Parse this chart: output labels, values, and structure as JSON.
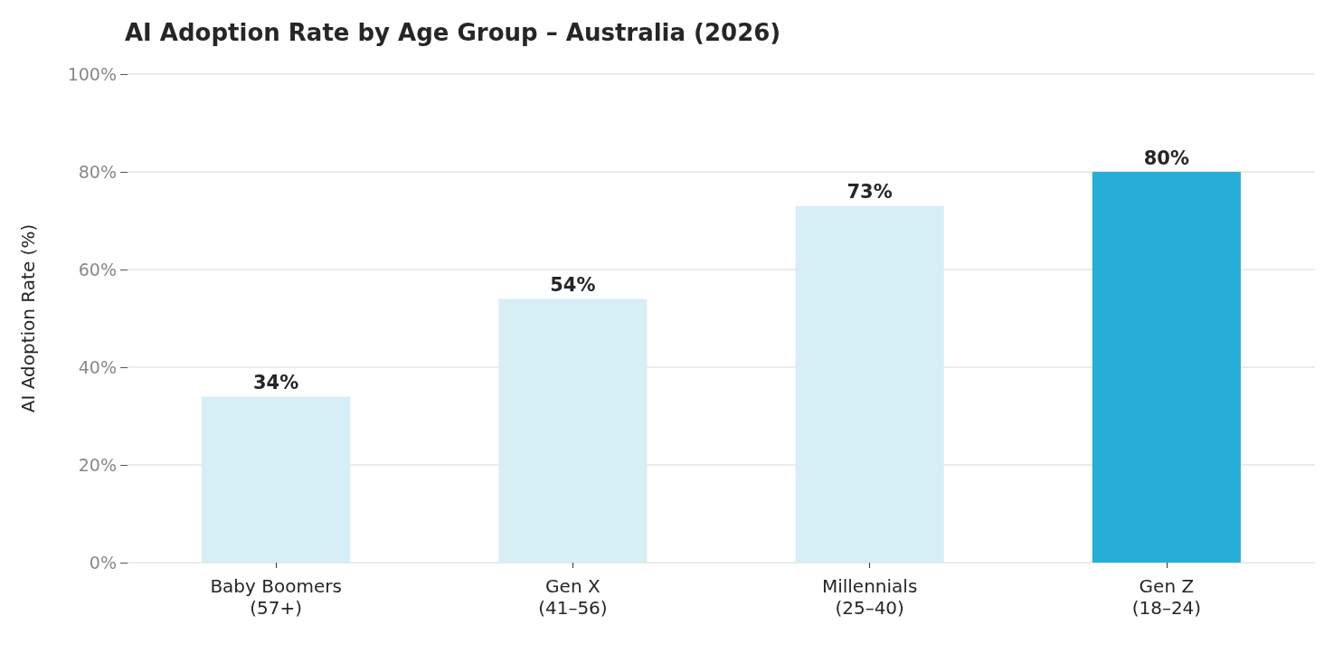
{
  "chart_data": {
    "type": "bar",
    "title": "AI Adoption Rate by Age Group – Australia (2026)",
    "ylabel": "AI Adoption Rate (%)",
    "categories": [
      "Baby Boomers\n(57+)",
      "Gen X\n(41–56)",
      "Millennials\n(25–40)",
      "Gen Z\n(18–24)"
    ],
    "values": [
      34,
      54,
      73,
      80
    ],
    "colors": [
      "#d6eef5",
      "#d6eef5",
      "#d6eef5",
      "#27aed8"
    ],
    "value_labels": [
      "34%",
      "54%",
      "73%",
      "80%"
    ],
    "ylim": [
      0,
      100
    ],
    "yticks": [
      {
        "value": 0,
        "label": "0%"
      },
      {
        "value": 20,
        "label": "20%"
      },
      {
        "value": 40,
        "label": "40%"
      },
      {
        "value": 60,
        "label": "60%"
      },
      {
        "value": 80,
        "label": "80%"
      },
      {
        "value": 100,
        "label": "100%"
      }
    ],
    "grid": "y"
  }
}
